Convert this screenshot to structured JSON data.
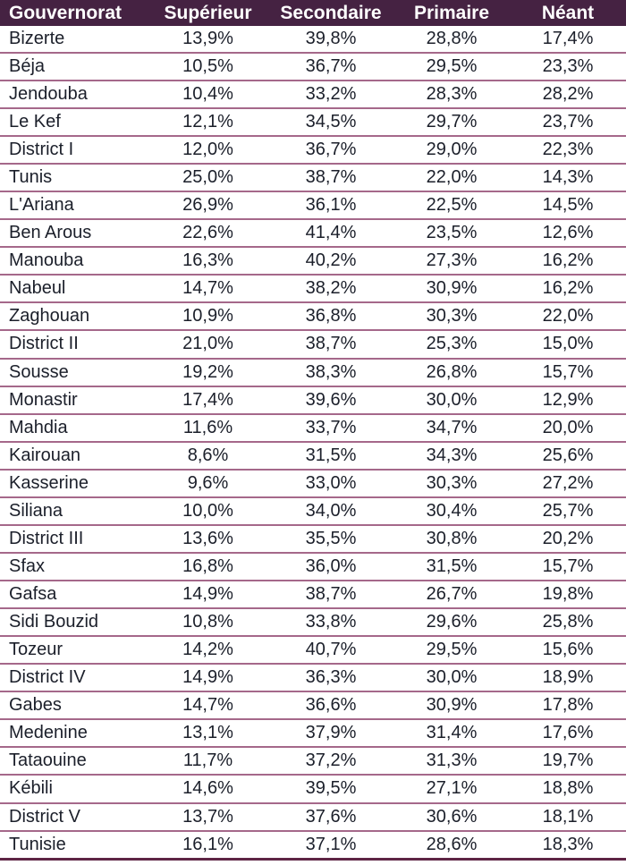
{
  "colors": {
    "header_bg": "#452242",
    "header_text": "#ffffff",
    "row_separator": "#a5688a",
    "bottom_border": "#5e2545",
    "text": "#1b1f2a"
  },
  "chart_data": {
    "type": "table",
    "columns": [
      "Gouvernorat",
      "Supérieur",
      "Secondaire",
      "Primaire",
      "Néant"
    ],
    "rows": [
      [
        "Bizerte",
        "13,9%",
        "39,8%",
        "28,8%",
        "17,4%"
      ],
      [
        "Béja",
        "10,5%",
        "36,7%",
        "29,5%",
        "23,3%"
      ],
      [
        "Jendouba",
        "10,4%",
        "33,2%",
        "28,3%",
        "28,2%"
      ],
      [
        "Le Kef",
        "12,1%",
        "34,5%",
        "29,7%",
        "23,7%"
      ],
      [
        "District I",
        "12,0%",
        "36,7%",
        "29,0%",
        "22,3%"
      ],
      [
        "Tunis",
        "25,0%",
        "38,7%",
        "22,0%",
        "14,3%"
      ],
      [
        "L'Ariana",
        "26,9%",
        "36,1%",
        "22,5%",
        "14,5%"
      ],
      [
        "Ben Arous",
        "22,6%",
        "41,4%",
        "23,5%",
        "12,6%"
      ],
      [
        "Manouba",
        "16,3%",
        "40,2%",
        "27,3%",
        "16,2%"
      ],
      [
        "Nabeul",
        "14,7%",
        "38,2%",
        "30,9%",
        "16,2%"
      ],
      [
        "Zaghouan",
        "10,9%",
        "36,8%",
        "30,3%",
        "22,0%"
      ],
      [
        "District II",
        "21,0%",
        "38,7%",
        "25,3%",
        "15,0%"
      ],
      [
        "Sousse",
        "19,2%",
        "38,3%",
        "26,8%",
        "15,7%"
      ],
      [
        "Monastir",
        "17,4%",
        "39,6%",
        "30,0%",
        "12,9%"
      ],
      [
        "Mahdia",
        "11,6%",
        "33,7%",
        "34,7%",
        "20,0%"
      ],
      [
        "Kairouan",
        "8,6%",
        "31,5%",
        "34,3%",
        "25,6%"
      ],
      [
        "Kasserine",
        "9,6%",
        "33,0%",
        "30,3%",
        "27,2%"
      ],
      [
        "Siliana",
        "10,0%",
        "34,0%",
        "30,4%",
        "25,7%"
      ],
      [
        "District III",
        "13,6%",
        "35,5%",
        "30,8%",
        "20,2%"
      ],
      [
        "Sfax",
        "16,8%",
        "36,0%",
        "31,5%",
        "15,7%"
      ],
      [
        "Gafsa",
        "14,9%",
        "38,7%",
        "26,7%",
        "19,8%"
      ],
      [
        "Sidi Bouzid",
        "10,8%",
        "33,8%",
        "29,6%",
        "25,8%"
      ],
      [
        "Tozeur",
        "14,2%",
        "40,7%",
        "29,5%",
        "15,6%"
      ],
      [
        "District IV",
        "14,9%",
        "36,3%",
        "30,0%",
        "18,9%"
      ],
      [
        "Gabes",
        "14,7%",
        "36,6%",
        "30,9%",
        "17,8%"
      ],
      [
        "Medenine",
        "13,1%",
        "37,9%",
        "31,4%",
        "17,6%"
      ],
      [
        "Tataouine",
        "11,7%",
        "37,2%",
        "31,3%",
        "19,7%"
      ],
      [
        "Kébili",
        "14,6%",
        "39,5%",
        "27,1%",
        "18,8%"
      ],
      [
        "District V",
        "13,7%",
        "37,6%",
        "30,6%",
        "18,1%"
      ],
      [
        "Tunisie",
        "16,1%",
        "37,1%",
        "28,6%",
        "18,3%"
      ]
    ]
  }
}
